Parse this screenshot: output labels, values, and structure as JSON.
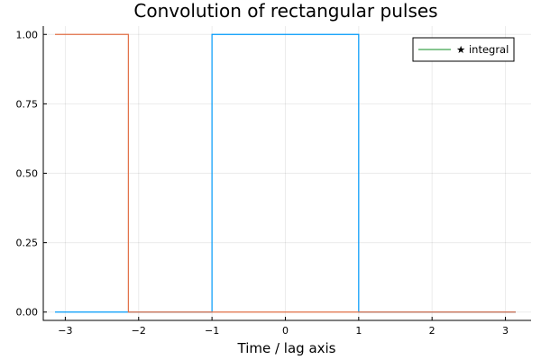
{
  "chart_data": {
    "type": "line",
    "title": "Convolution of rectangular pulses",
    "xlabel": "Time / lag axis",
    "ylabel": "",
    "xlim": [
      -3.3,
      3.35
    ],
    "ylim": [
      -0.03,
      1.03
    ],
    "xticks": [
      -3,
      -2,
      -1,
      0,
      1,
      2,
      3
    ],
    "xtick_labels": [
      "−3",
      "−2",
      "−1",
      "0",
      "1",
      "2",
      "3"
    ],
    "yticks": [
      0,
      0.25,
      0.5,
      0.75,
      1
    ],
    "ytick_labels": [
      "0.00",
      "0.25",
      "0.50",
      "0.75",
      "1.00"
    ],
    "grid": true,
    "legend_position": "top-right",
    "series": [
      {
        "color": "#009AFA",
        "x": [
          -3.14,
          -1.0,
          -1.0,
          1.0,
          1.0,
          3.14
        ],
        "y": [
          0,
          0,
          1,
          1,
          0,
          0
        ]
      },
      {
        "color": "#E26F46",
        "x": [
          -3.14,
          -2.14,
          -2.14,
          3.14
        ],
        "y": [
          1,
          1,
          0,
          0
        ]
      },
      {
        "name": "★ integral",
        "color": "#3EA44E",
        "x": [],
        "y": []
      }
    ]
  }
}
